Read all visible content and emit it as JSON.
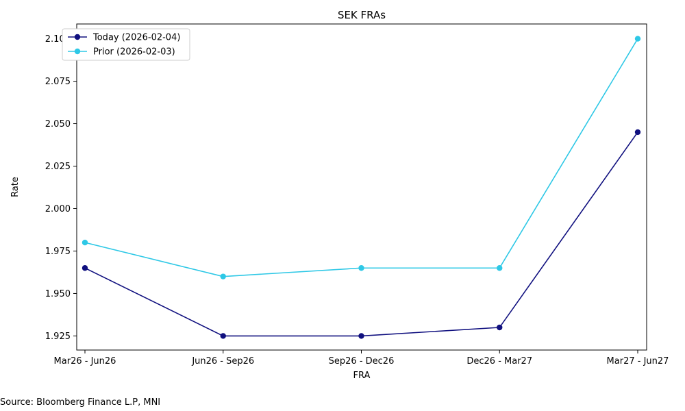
{
  "chart_data": {
    "type": "line",
    "title": "SEK FRAs",
    "xlabel": "FRA",
    "ylabel": "Rate",
    "categories": [
      "Mar26 - Jun26",
      "Jun26 - Sep26",
      "Sep26 - Dec26",
      "Dec26 - Mar27",
      "Mar27 - Jun27"
    ],
    "ylim": [
      1.9167,
      2.1087
    ],
    "yticks": [
      "1.925",
      "1.950",
      "1.975",
      "2.000",
      "2.025",
      "2.050",
      "2.075",
      "2.100"
    ],
    "grid": false,
    "legend_position": "top-left",
    "series": [
      {
        "name": "Today (2026-02-04)",
        "color": "#10107f",
        "values": [
          1.965,
          1.925,
          1.925,
          1.93,
          2.045
        ]
      },
      {
        "name": "Prior (2026-02-03)",
        "color": "#2ec8e6",
        "values": [
          1.98,
          1.96,
          1.965,
          1.965,
          2.1
        ]
      }
    ]
  },
  "footer": {
    "source": "Source: Bloomberg Finance L.P, MNI"
  }
}
